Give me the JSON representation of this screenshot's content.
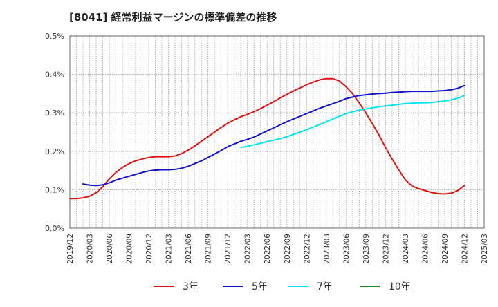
{
  "chart_data": {
    "type": "line",
    "title": "[8041]  経常利益マージンの標準偏差の推移",
    "xlabel": "",
    "ylabel": "",
    "ylim": [
      0.0,
      0.5
    ],
    "y_ticks": [
      "0.0%",
      "0.1%",
      "0.2%",
      "0.3%",
      "0.4%",
      "0.5%"
    ],
    "x_ticks": [
      "2019/12",
      "2020/03",
      "2020/06",
      "2020/09",
      "2020/12",
      "2021/03",
      "2021/06",
      "2021/09",
      "2021/12",
      "2022/03",
      "2022/06",
      "2022/09",
      "2022/12",
      "2023/03",
      "2023/06",
      "2023/09",
      "2023/12",
      "2024/03",
      "2024/06",
      "2024/09",
      "2024/12",
      "2025/03"
    ],
    "grid": true,
    "legend_position": "bottom",
    "series": [
      {
        "name": "3年",
        "color": "#dd1111",
        "points": [
          [
            "2019/12",
            0.077
          ],
          [
            "2020/01",
            0.077
          ],
          [
            "2020/02",
            0.079
          ],
          [
            "2020/03",
            0.083
          ],
          [
            "2020/04",
            0.092
          ],
          [
            "2020/05",
            0.108
          ],
          [
            "2020/06",
            0.128
          ],
          [
            "2020/07",
            0.145
          ],
          [
            "2020/08",
            0.158
          ],
          [
            "2020/09",
            0.168
          ],
          [
            "2020/10",
            0.175
          ],
          [
            "2020/11",
            0.18
          ],
          [
            "2020/12",
            0.184
          ],
          [
            "2021/01",
            0.186
          ],
          [
            "2021/02",
            0.186
          ],
          [
            "2021/03",
            0.186
          ],
          [
            "2021/04",
            0.188
          ],
          [
            "2021/05",
            0.194
          ],
          [
            "2021/06",
            0.203
          ],
          [
            "2021/07",
            0.214
          ],
          [
            "2021/08",
            0.226
          ],
          [
            "2021/09",
            0.238
          ],
          [
            "2021/10",
            0.25
          ],
          [
            "2021/11",
            0.262
          ],
          [
            "2021/12",
            0.273
          ],
          [
            "2022/01",
            0.282
          ],
          [
            "2022/02",
            0.29
          ],
          [
            "2022/03",
            0.296
          ],
          [
            "2022/04",
            0.303
          ],
          [
            "2022/05",
            0.311
          ],
          [
            "2022/06",
            0.32
          ],
          [
            "2022/07",
            0.329
          ],
          [
            "2022/08",
            0.339
          ],
          [
            "2022/09",
            0.348
          ],
          [
            "2022/10",
            0.357
          ],
          [
            "2022/11",
            0.365
          ],
          [
            "2022/12",
            0.373
          ],
          [
            "2023/01",
            0.38
          ],
          [
            "2023/02",
            0.386
          ],
          [
            "2023/03",
            0.389
          ],
          [
            "2023/04",
            0.389
          ],
          [
            "2023/05",
            0.383
          ],
          [
            "2023/06",
            0.368
          ],
          [
            "2023/07",
            0.35
          ],
          [
            "2023/08",
            0.326
          ],
          [
            "2023/09",
            0.3
          ],
          [
            "2023/10",
            0.272
          ],
          [
            "2023/11",
            0.242
          ],
          [
            "2023/12",
            0.21
          ],
          [
            "2024/01",
            0.18
          ],
          [
            "2024/02",
            0.152
          ],
          [
            "2024/03",
            0.126
          ],
          [
            "2024/04",
            0.11
          ],
          [
            "2024/05",
            0.103
          ],
          [
            "2024/06",
            0.098
          ],
          [
            "2024/07",
            0.093
          ],
          [
            "2024/08",
            0.09
          ],
          [
            "2024/09",
            0.089
          ],
          [
            "2024/10",
            0.091
          ],
          [
            "2024/11",
            0.098
          ],
          [
            "2024/12",
            0.111
          ]
        ]
      },
      {
        "name": "5年",
        "color": "#1111cc",
        "points": [
          [
            "2020/02",
            0.115
          ],
          [
            "2020/03",
            0.112
          ],
          [
            "2020/04",
            0.111
          ],
          [
            "2020/05",
            0.113
          ],
          [
            "2020/06",
            0.118
          ],
          [
            "2020/07",
            0.125
          ],
          [
            "2020/08",
            0.13
          ],
          [
            "2020/09",
            0.135
          ],
          [
            "2020/10",
            0.14
          ],
          [
            "2020/11",
            0.145
          ],
          [
            "2020/12",
            0.149
          ],
          [
            "2021/01",
            0.151
          ],
          [
            "2021/02",
            0.152
          ],
          [
            "2021/03",
            0.152
          ],
          [
            "2021/04",
            0.153
          ],
          [
            "2021/05",
            0.156
          ],
          [
            "2021/06",
            0.161
          ],
          [
            "2021/07",
            0.168
          ],
          [
            "2021/08",
            0.175
          ],
          [
            "2021/09",
            0.184
          ],
          [
            "2021/10",
            0.193
          ],
          [
            "2021/11",
            0.202
          ],
          [
            "2021/12",
            0.212
          ],
          [
            "2022/01",
            0.219
          ],
          [
            "2022/02",
            0.226
          ],
          [
            "2022/03",
            0.231
          ],
          [
            "2022/04",
            0.237
          ],
          [
            "2022/05",
            0.245
          ],
          [
            "2022/06",
            0.253
          ],
          [
            "2022/07",
            0.261
          ],
          [
            "2022/08",
            0.269
          ],
          [
            "2022/09",
            0.277
          ],
          [
            "2022/10",
            0.284
          ],
          [
            "2022/11",
            0.291
          ],
          [
            "2022/12",
            0.298
          ],
          [
            "2023/01",
            0.305
          ],
          [
            "2023/02",
            0.312
          ],
          [
            "2023/03",
            0.318
          ],
          [
            "2023/04",
            0.324
          ],
          [
            "2023/05",
            0.33
          ],
          [
            "2023/06",
            0.337
          ],
          [
            "2023/07",
            0.341
          ],
          [
            "2023/08",
            0.345
          ],
          [
            "2023/09",
            0.347
          ],
          [
            "2023/10",
            0.349
          ],
          [
            "2023/11",
            0.35
          ],
          [
            "2023/12",
            0.351
          ],
          [
            "2024/01",
            0.353
          ],
          [
            "2024/02",
            0.354
          ],
          [
            "2024/03",
            0.355
          ],
          [
            "2024/04",
            0.356
          ],
          [
            "2024/05",
            0.356
          ],
          [
            "2024/06",
            0.356
          ],
          [
            "2024/07",
            0.356
          ],
          [
            "2024/08",
            0.357
          ],
          [
            "2024/09",
            0.358
          ],
          [
            "2024/10",
            0.36
          ],
          [
            "2024/11",
            0.364
          ],
          [
            "2024/12",
            0.371
          ]
        ]
      },
      {
        "name": "7年",
        "color": "#00e5ee",
        "points": [
          [
            "2022/02",
            0.21
          ],
          [
            "2022/03",
            0.213
          ],
          [
            "2022/04",
            0.217
          ],
          [
            "2022/05",
            0.221
          ],
          [
            "2022/06",
            0.225
          ],
          [
            "2022/07",
            0.229
          ],
          [
            "2022/08",
            0.233
          ],
          [
            "2022/09",
            0.238
          ],
          [
            "2022/10",
            0.244
          ],
          [
            "2022/11",
            0.25
          ],
          [
            "2022/12",
            0.256
          ],
          [
            "2023/01",
            0.263
          ],
          [
            "2023/02",
            0.27
          ],
          [
            "2023/03",
            0.277
          ],
          [
            "2023/04",
            0.284
          ],
          [
            "2023/05",
            0.291
          ],
          [
            "2023/06",
            0.298
          ],
          [
            "2023/07",
            0.303
          ],
          [
            "2023/08",
            0.307
          ],
          [
            "2023/09",
            0.31
          ],
          [
            "2023/10",
            0.313
          ],
          [
            "2023/11",
            0.316
          ],
          [
            "2023/12",
            0.318
          ],
          [
            "2024/01",
            0.32
          ],
          [
            "2024/02",
            0.322
          ],
          [
            "2024/03",
            0.324
          ],
          [
            "2024/04",
            0.325
          ],
          [
            "2024/05",
            0.326
          ],
          [
            "2024/06",
            0.326
          ],
          [
            "2024/07",
            0.327
          ],
          [
            "2024/08",
            0.329
          ],
          [
            "2024/09",
            0.331
          ],
          [
            "2024/10",
            0.334
          ],
          [
            "2024/11",
            0.338
          ],
          [
            "2024/12",
            0.345
          ]
        ]
      },
      {
        "name": "10年",
        "color": "#228822",
        "points": []
      }
    ]
  }
}
